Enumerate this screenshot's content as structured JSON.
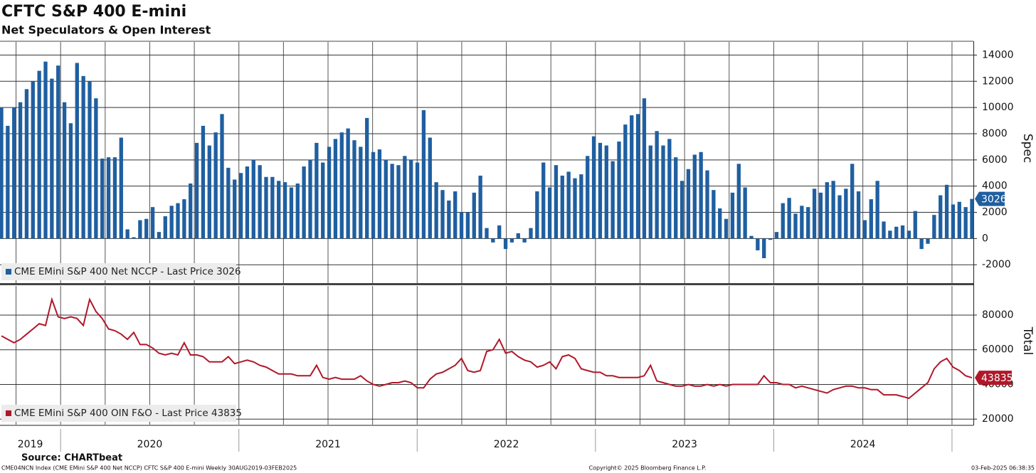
{
  "title": "CFTC S&P 400 E-mini",
  "subtitle": "Net Speculators & Open Interest",
  "source": "Source: CHARTbeat",
  "footer": {
    "left": "CME04NCN Index (CME EMini S&P 400 Net NCCP) CFTC S&P 400 E-mini  Weekly 30AUG2019-03FEB2025",
    "center": "Copyright© 2025 Bloomberg Finance L.P.",
    "right": "03-Feb-2025 06:38:35"
  },
  "x_axis": {
    "xlim": [
      2019.66,
      2025.12
    ],
    "xticks": [
      2020,
      2021,
      2022,
      2023,
      2024,
      2025
    ],
    "labels": [
      "2019",
      "2020",
      "2021",
      "2022",
      "2023",
      "2024"
    ],
    "xgrid": [
      2019.75,
      2020,
      2020.25,
      2020.5,
      2020.75,
      2021,
      2021.25,
      2021.5,
      2021.75,
      2022,
      2022.25,
      2022.5,
      2022.75,
      2023,
      2023.25,
      2023.5,
      2023.75,
      2024,
      2024.25,
      2024.5,
      2024.75,
      2025
    ]
  },
  "chart_data": [
    {
      "type": "bar",
      "axis_label": "Spec",
      "ylim": [
        -3400,
        15000
      ],
      "yticks": [
        -2000,
        0,
        2000,
        4000,
        6000,
        8000,
        10000,
        12000,
        14000
      ],
      "grid": true,
      "series": [
        {
          "name": "CME EMini S&P 400 Net NCCP - Last Price 3026",
          "color": "#1f5fa0",
          "values": [
            10000,
            8600,
            10000,
            10400,
            11400,
            12000,
            12800,
            13500,
            12200,
            13200,
            10400,
            8800,
            13400,
            12400,
            12000,
            10700,
            6100,
            6200,
            6200,
            7700,
            700,
            100,
            1400,
            1500,
            2400,
            500,
            1700,
            2500,
            2700,
            3000,
            4200,
            7300,
            8600,
            7100,
            8100,
            9500,
            5400,
            4500,
            5000,
            5500,
            6000,
            5600,
            4700,
            4700,
            4400,
            4300,
            3900,
            4200,
            5500,
            6000,
            7300,
            5800,
            7000,
            7600,
            8100,
            8400,
            7500,
            7000,
            9200,
            6600,
            6800,
            6000,
            5700,
            5600,
            6300,
            6000,
            5800,
            9800,
            7700,
            4300,
            3700,
            2900,
            3600,
            2000,
            2000,
            3500,
            4800,
            800,
            -300,
            1000,
            -800,
            -300,
            400,
            -300,
            800,
            3600,
            5800,
            3900,
            5600,
            4800,
            5100,
            4600,
            4900,
            6300,
            7800,
            7300,
            7100,
            5900,
            7400,
            8700,
            9400,
            9500,
            10700,
            7100,
            8200,
            7100,
            7600,
            6200,
            4400,
            5300,
            6400,
            6600,
            5200,
            3700,
            2300,
            1500,
            3500,
            5700,
            3900,
            200,
            -900,
            -1500,
            -100,
            500,
            2700,
            3100,
            1900,
            2500,
            2400,
            3800,
            3500,
            4300,
            4400,
            3300,
            3800,
            5700,
            3600,
            1400,
            3000,
            4400,
            1300,
            600,
            900,
            1000,
            600,
            2100,
            -800,
            -400,
            1800,
            3300,
            4100,
            2600,
            2800,
            2400,
            3026
          ]
        }
      ]
    },
    {
      "type": "line",
      "axis_label": "Total",
      "ylim": [
        16800,
        96800
      ],
      "yticks": [
        20000,
        40000,
        60000,
        80000
      ],
      "grid": true,
      "series": [
        {
          "name": "CME EMini S&P 400 OIN F&O - Last Price 43835",
          "color": "#b0182a",
          "values": [
            68000,
            66000,
            64000,
            66000,
            69000,
            72000,
            75000,
            74000,
            89000,
            79000,
            78000,
            79000,
            78000,
            74000,
            89000,
            82000,
            78000,
            72000,
            71000,
            69000,
            66000,
            70000,
            63000,
            63000,
            61000,
            58000,
            57000,
            58000,
            57000,
            64000,
            57000,
            57000,
            56000,
            53000,
            53000,
            53000,
            56000,
            52000,
            53000,
            54000,
            53000,
            51000,
            50000,
            48000,
            46000,
            46000,
            46000,
            45000,
            45000,
            45000,
            51000,
            44000,
            43000,
            44000,
            43000,
            43000,
            43000,
            45000,
            42000,
            40000,
            39000,
            40000,
            41000,
            41000,
            42000,
            41000,
            38000,
            38000,
            43000,
            46000,
            47000,
            49000,
            51000,
            55000,
            48000,
            47000,
            48000,
            59000,
            60000,
            66000,
            58000,
            59000,
            56000,
            54000,
            53000,
            50000,
            51000,
            53000,
            49000,
            56000,
            57000,
            55000,
            49000,
            48000,
            47000,
            47000,
            45000,
            45000,
            44000,
            44000,
            44000,
            44000,
            45000,
            51000,
            42000,
            41000,
            40000,
            39000,
            39000,
            40000,
            39000,
            39000,
            40000,
            39000,
            40000,
            39000,
            40000,
            40000,
            40000,
            40000,
            40000,
            45000,
            41000,
            41000,
            40000,
            40000,
            38000,
            39000,
            38000,
            37000,
            36000,
            35000,
            37000,
            38000,
            39000,
            39000,
            38000,
            38000,
            37000,
            37000,
            34000,
            34000,
            34000,
            33000,
            32000,
            35000,
            38000,
            41000,
            49000,
            53000,
            55000,
            50000,
            48000,
            45000,
            43835
          ]
        }
      ]
    }
  ]
}
